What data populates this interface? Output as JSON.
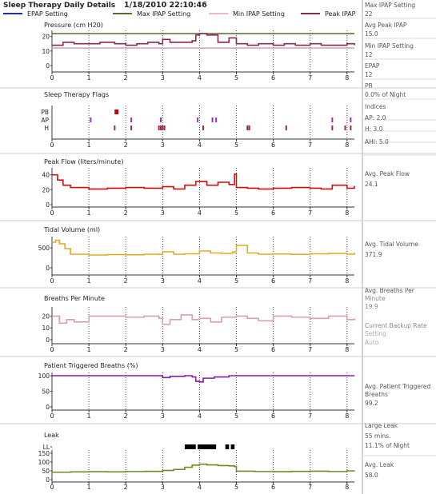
{
  "window": {
    "title": "Sleep Therapy Daily Details",
    "datetime": "1/18/2010  22:10:46"
  },
  "legend": [
    {
      "label": "EPAP Setting",
      "color": "#1f2fa8"
    },
    {
      "label": "Max IPAP Setting",
      "color": "#556b2f"
    },
    {
      "label": "Min IPAP Setting",
      "color": "#f0b6c8"
    },
    {
      "label": "Peak IPAP",
      "color": "#8b2a4f"
    }
  ],
  "sidebar": [
    {
      "label": "Max IPAP Setting",
      "value": "22"
    },
    {
      "label": "Avg Peak IPAP",
      "value": "15.0"
    },
    {
      "label": "Min IPAP Setting",
      "value": "12"
    },
    {
      "label": "EPAP",
      "value": "12"
    },
    {
      "label": "PB",
      "value": "0.0% of Night"
    },
    {
      "label": "Indices",
      "value": ""
    },
    {
      "label": "AP: 2.0",
      "value": ""
    },
    {
      "label": "H: 3.0",
      "value": ""
    },
    {
      "label": "AHI: 5.0",
      "value": ""
    },
    {
      "label": "Avg. Peak Flow",
      "value": "24.1"
    },
    {
      "label": "Avg. Tidal Volume",
      "value": "371.9"
    },
    {
      "label": "Avg. Breaths Per Minute",
      "value": "19.9"
    },
    {
      "label": "Current Backup Rate Setting",
      "value": "Auto"
    },
    {
      "label": "Avg. Patient Triggered Breaths",
      "value": "99.2"
    },
    {
      "label": "Large Leak",
      "value": "55 mins."
    },
    {
      "label": "",
      "value": "11.1% of Night"
    },
    {
      "label": "Avg. Leak",
      "value": "58.0"
    }
  ],
  "chart_data": [
    {
      "type": "line",
      "title": "Pressure (cm H20)",
      "xlim": [
        0,
        8.2
      ],
      "ylim": [
        0,
        22
      ],
      "xticks": [
        "0",
        "1",
        "2",
        "3",
        "4",
        "5",
        "6",
        "7",
        "8"
      ],
      "yticks": [
        "0",
        "10",
        "20"
      ],
      "series": [
        {
          "name": "EPAP Setting",
          "color": "#1f2fa8",
          "constant": 12
        },
        {
          "name": "Max IPAP Setting",
          "color": "#556b2f",
          "constant": 22
        },
        {
          "name": "Min IPAP Setting",
          "color": "#f0b6c8",
          "constant": 12
        },
        {
          "name": "Peak IPAP",
          "color": "#8b2a4f",
          "x": [
            0,
            0.3,
            0.6,
            1.0,
            1.3,
            1.7,
            2.0,
            2.3,
            2.6,
            2.9,
            3.0,
            3.2,
            3.5,
            3.8,
            3.9,
            4.0,
            4.2,
            4.5,
            4.8,
            5.0,
            5.3,
            5.6,
            6.0,
            6.3,
            6.6,
            7.0,
            7.3,
            7.6,
            8.0,
            8.2
          ],
          "y": [
            14,
            16,
            15,
            15,
            16,
            15,
            14,
            15,
            16,
            15,
            18,
            16,
            16,
            17,
            21,
            22,
            21,
            16,
            19,
            15,
            14,
            15,
            14,
            15,
            14,
            15,
            14,
            14,
            15,
            14
          ]
        }
      ]
    },
    {
      "type": "scatter",
      "title": "Sleep Therapy Flags",
      "xlim": [
        0,
        8.2
      ],
      "categories": [
        "PB",
        "AP",
        "H"
      ],
      "xticks": [
        "0",
        "1",
        "2",
        "3",
        "4",
        "5",
        "6",
        "7",
        "8"
      ],
      "series": [
        {
          "name": "PB",
          "color": "#d00000",
          "x": [
            1.75
          ]
        },
        {
          "name": "AP",
          "color": "#9b30c8",
          "x": [
            1.05,
            2.15,
            2.95,
            3.95,
            4.35,
            4.45,
            7.6,
            8.1
          ]
        },
        {
          "name": "H",
          "color": "#a0283a",
          "x": [
            1.7,
            2.15,
            2.9,
            2.95,
            3.0,
            3.05,
            4.1,
            5.3,
            5.35,
            6.35,
            7.6,
            7.95,
            8.1
          ]
        }
      ]
    },
    {
      "type": "line",
      "title": "Peak Flow (liters/minute)",
      "xlim": [
        0,
        8.2
      ],
      "ylim": [
        0,
        45
      ],
      "xticks": [
        "0",
        "1",
        "2",
        "3",
        "4",
        "5",
        "6",
        "7",
        "8"
      ],
      "yticks": [
        "0",
        "20",
        "40"
      ],
      "series": [
        {
          "name": "Peak Flow",
          "color": "#cc1010",
          "x": [
            0,
            0.15,
            0.3,
            0.5,
            1.0,
            1.5,
            2.0,
            2.5,
            3.0,
            3.3,
            3.6,
            3.9,
            4.2,
            4.5,
            4.8,
            4.95,
            5.0,
            5.3,
            5.6,
            6.0,
            6.5,
            7.0,
            7.3,
            7.6,
            8.0,
            8.2
          ],
          "y": [
            40,
            33,
            26,
            23,
            21,
            22,
            23,
            22,
            24,
            21,
            26,
            31,
            26,
            30,
            27,
            41,
            23,
            22,
            21,
            22,
            23,
            22,
            21,
            26,
            22,
            25
          ]
        }
      ]
    },
    {
      "type": "line",
      "title": "Tidal Volume (ml)",
      "xlim": [
        0,
        8.2
      ],
      "ylim": [
        0,
        700
      ],
      "xticks": [
        "0",
        "1",
        "2",
        "3",
        "4",
        "5",
        "6",
        "7",
        "8"
      ],
      "yticks": [
        "0",
        "500"
      ],
      "series": [
        {
          "name": "Tidal Volume",
          "color": "#e5a820",
          "x": [
            0,
            0.1,
            0.2,
            0.35,
            0.5,
            1.0,
            1.5,
            2.0,
            2.5,
            2.9,
            3.0,
            3.3,
            3.6,
            4.0,
            4.3,
            4.6,
            4.9,
            5.0,
            5.3,
            5.6,
            6.0,
            6.5,
            7.0,
            7.5,
            8.0,
            8.2
          ],
          "y": [
            640,
            690,
            600,
            480,
            340,
            320,
            330,
            325,
            340,
            335,
            400,
            340,
            350,
            420,
            370,
            360,
            400,
            560,
            370,
            340,
            345,
            335,
            350,
            360,
            340,
            380
          ]
        }
      ]
    },
    {
      "type": "line",
      "title": "Breaths Per Minute",
      "xlim": [
        0,
        8.2
      ],
      "ylim": [
        0,
        25
      ],
      "xticks": [
        "0",
        "1",
        "2",
        "3",
        "4",
        "5",
        "6",
        "7",
        "8"
      ],
      "yticks": [
        "0",
        "10",
        "20"
      ],
      "series": [
        {
          "name": "Breaths Per Minute",
          "color": "#d9a0a8",
          "x": [
            0,
            0.2,
            0.4,
            0.6,
            1.0,
            1.5,
            2.0,
            2.5,
            2.9,
            3.0,
            3.2,
            3.5,
            3.8,
            4.0,
            4.3,
            4.6,
            5.0,
            5.3,
            5.6,
            6.0,
            6.5,
            7.0,
            7.5,
            8.0,
            8.2
          ],
          "y": [
            20,
            14,
            17,
            15,
            20,
            20,
            19,
            20,
            18,
            13,
            17,
            21,
            17,
            18,
            15,
            19,
            20,
            18,
            16,
            20,
            19,
            18,
            20,
            17,
            18
          ]
        }
      ]
    },
    {
      "type": "line",
      "title": "Patient Triggered Breaths (%)",
      "xlim": [
        0,
        8.2
      ],
      "ylim": [
        0,
        100
      ],
      "xticks": [
        "0",
        "1",
        "2",
        "3",
        "4",
        "5",
        "6",
        "7",
        "8"
      ],
      "yticks": [
        "0",
        "50",
        "100"
      ],
      "series": [
        {
          "name": "Patient Triggered Breaths",
          "color": "#8a1ab0",
          "x": [
            0,
            1.0,
            2.0,
            2.8,
            3.0,
            3.2,
            3.6,
            3.8,
            3.9,
            4.0,
            4.1,
            4.4,
            4.8,
            5.0,
            6.0,
            7.0,
            8.0,
            8.2
          ],
          "y": [
            100,
            100,
            100,
            100,
            94,
            98,
            100,
            96,
            82,
            80,
            92,
            96,
            100,
            100,
            100,
            100,
            100,
            100
          ]
        }
      ]
    },
    {
      "type": "line",
      "title": "Leak",
      "xlim": [
        0,
        8.2
      ],
      "ylim": [
        0,
        150
      ],
      "xticks": [
        "0",
        "1",
        "2",
        "3",
        "4",
        "5",
        "6",
        "7",
        "8"
      ],
      "yticks": [
        "LL",
        "150",
        "100",
        "50",
        "0"
      ],
      "large_leak_spans": [
        [
          3.6,
          3.9
        ],
        [
          3.95,
          4.45
        ],
        [
          4.7,
          4.8
        ],
        [
          4.85,
          4.95
        ]
      ],
      "series": [
        {
          "name": "Leak",
          "color": "#6b8e23",
          "x": [
            0,
            0.5,
            1.0,
            1.5,
            2.0,
            2.5,
            3.0,
            3.3,
            3.6,
            3.8,
            4.0,
            4.2,
            4.5,
            4.8,
            4.95,
            5.0,
            5.5,
            6.0,
            6.5,
            7.0,
            7.5,
            8.0,
            8.2
          ],
          "y": [
            42,
            44,
            45,
            44,
            46,
            47,
            52,
            58,
            70,
            82,
            88,
            84,
            80,
            78,
            74,
            48,
            46,
            45,
            47,
            48,
            46,
            50,
            48
          ]
        }
      ]
    }
  ]
}
